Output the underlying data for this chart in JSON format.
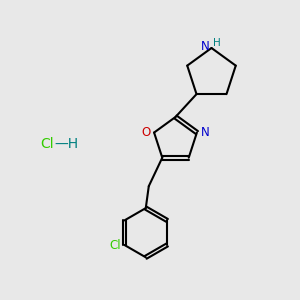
{
  "background_color": "#e8e8e8",
  "bond_color": "#000000",
  "N_color": "#0000cc",
  "O_color": "#cc0000",
  "Cl_color": "#33cc00",
  "NH_color": "#008080",
  "H_hcl_color": "#008080",
  "line_width": 1.5,
  "fig_width": 3.0,
  "fig_height": 3.0,
  "dpi": 100,
  "xlim": [
    0,
    10
  ],
  "ylim": [
    0,
    10
  ]
}
